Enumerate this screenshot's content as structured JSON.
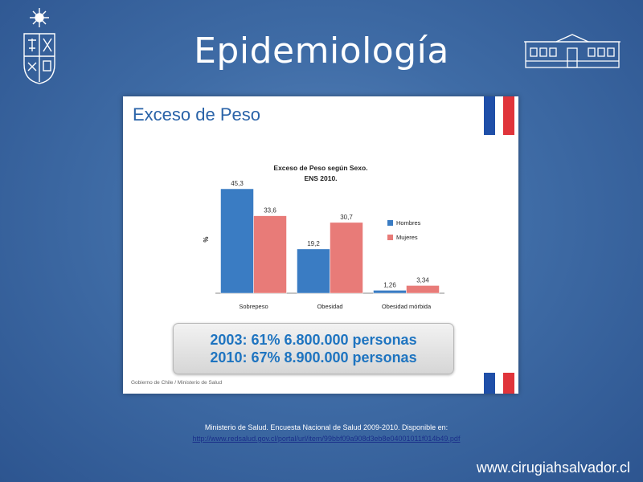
{
  "slide": {
    "title": "Epidemiología",
    "website": "www.cirugiahsalvador.cl"
  },
  "panel": {
    "title": "Exceso de Peso",
    "source_note": "Gobierno de Chile / Ministerio de Salud"
  },
  "stats": {
    "line1": "2003: 61% 6.800.000 personas",
    "line2": "2010: 67% 8.900.000 personas"
  },
  "citation": {
    "text": "Ministerio de Salud. Encuesta Nacional de Salud 2009-2010. Disponible en:",
    "url": "http://www.redsalud.gov.cl/portal/url/item/99bbf09a908d3eb8e04001011f014b49.pdf"
  },
  "colors": {
    "hombres": "#3a7cc3",
    "mujeres": "#e87b78",
    "title_blue": "#2a63a8"
  },
  "chart_data": {
    "type": "bar",
    "title": "Exceso de Peso según Sexo.",
    "subtitle": "ENS 2010.",
    "ylabel": "%",
    "xlabel": "",
    "categories": [
      "Sobrepeso",
      "Obesidad",
      "Obesidad mórbida"
    ],
    "series": [
      {
        "name": "Hombres",
        "values": [
          45.3,
          19.2,
          1.26
        ],
        "labels": [
          "45,3",
          "19,2",
          "1,26"
        ],
        "color": "#3a7cc3"
      },
      {
        "name": "Mujeres",
        "values": [
          33.6,
          30.7,
          3.34
        ],
        "labels": [
          "33,6",
          "30,7",
          "3,34"
        ],
        "color": "#e87b78"
      }
    ],
    "ylim": [
      0,
      45.3
    ],
    "grid": false,
    "legend": "right"
  }
}
